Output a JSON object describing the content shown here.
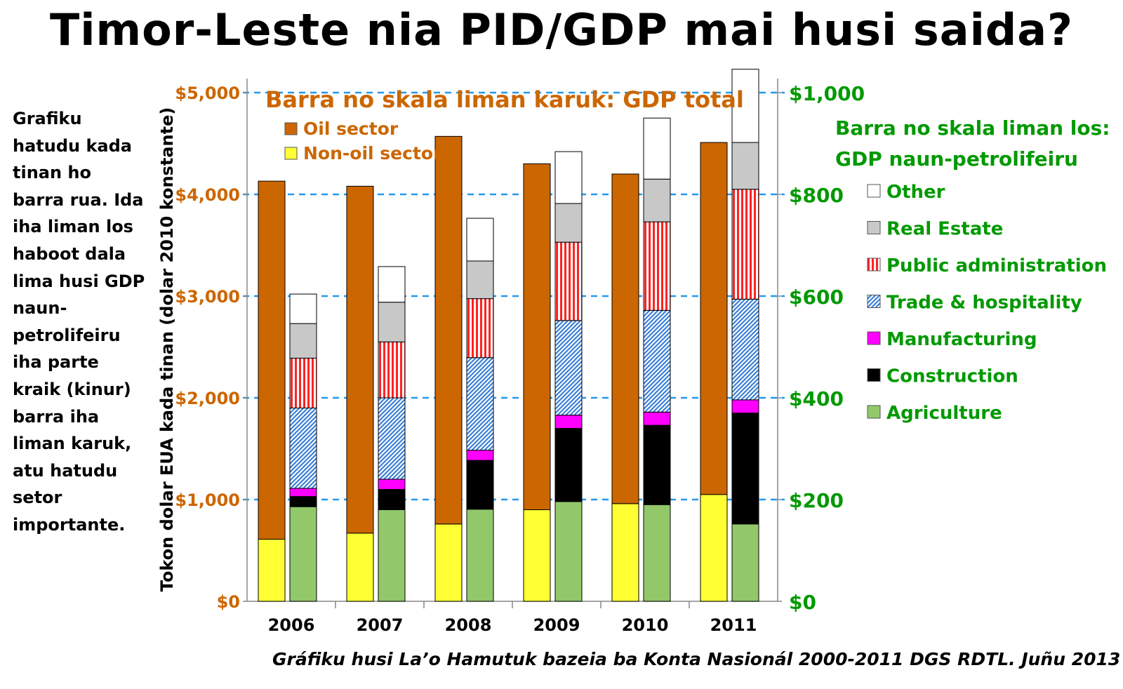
{
  "title": "Timor-Leste nia PID/GDP mai husi saida?",
  "side_text": "Grafiku\nhatudu kada\ntinan ho\nbarra rua. Ida\niha liman los\nhaboot dala\nlima husi GDP\nnaun-\npetrolifeiru\niha parte\nkraik (kinur)\nbarra iha\nliman karuk,\natu hatudu\nsetor\nimportante.",
  "caption": "Gráfiku husi La’o Hamutuk bazeia ba Konta Nasionál 2000-2011 DGS RDTL.  Juñu 2013",
  "colors": {
    "left_axis": "#cc6600",
    "right_axis": "#009900",
    "oil": "#cc6600",
    "non_oil": "#ffff33",
    "agriculture": "#92c86a",
    "construction": "#000000",
    "manufacturing": "#ff00ff",
    "trade": "#3a7fd5",
    "public_admin": "#ff2222",
    "real_estate": "#c8c8c8",
    "other": "#ffffff",
    "gridline": "#2299ee"
  },
  "chart_data": {
    "type": "bar",
    "categories": [
      "2006",
      "2007",
      "2008",
      "2009",
      "2010",
      "2011"
    ],
    "ylabel": "Tokon dolar EUA kada tinan (dolar 2010 konstante)",
    "left_axis": {
      "ylim": [
        0,
        5000
      ],
      "ticks": [
        0,
        1000,
        2000,
        3000,
        4000,
        5000
      ],
      "tick_labels": [
        "$0",
        "$1,000",
        "$2,000",
        "$3,000",
        "$4,000",
        "$5,000"
      ]
    },
    "right_axis": {
      "ylim": [
        0,
        1000
      ],
      "ticks": [
        0,
        200,
        400,
        600,
        800,
        1000
      ],
      "tick_labels": [
        "$0",
        "$200",
        "$400",
        "$600",
        "$800",
        "$1,000"
      ]
    },
    "total_gdp": {
      "heading": "Barra no skala liman karuk: GDP total",
      "axis": "left",
      "stacked": true,
      "series": [
        {
          "name": "Non-oil sector",
          "key": "non_oil",
          "values": [
            610,
            670,
            760,
            900,
            960,
            1050
          ]
        },
        {
          "name": "Oil sector",
          "key": "oil",
          "values": [
            3520,
            3410,
            3810,
            3400,
            3240,
            3460
          ]
        }
      ]
    },
    "non_oil_gdp": {
      "heading_line1": "Barra no skala liman los:",
      "heading_line2": "GDP naun-petrolifeiru",
      "axis": "right",
      "stacked": true,
      "series": [
        {
          "name": "Agriculture",
          "key": "agriculture",
          "values": [
            186,
            180,
            181,
            196,
            190,
            152
          ]
        },
        {
          "name": "Construction",
          "key": "construction",
          "values": [
            20,
            40,
            96,
            144,
            156,
            218
          ]
        },
        {
          "name": "Manufacturing",
          "key": "manufacturing",
          "values": [
            16,
            20,
            20,
            26,
            26,
            26
          ]
        },
        {
          "name": "Trade & hospitality",
          "key": "trade",
          "values": [
            158,
            160,
            182,
            186,
            200,
            198
          ]
        },
        {
          "name": "Public administration",
          "key": "public_admin",
          "values": [
            98,
            110,
            116,
            154,
            174,
            216
          ]
        },
        {
          "name": "Real Estate",
          "key": "real_estate",
          "values": [
            68,
            78,
            74,
            76,
            84,
            92
          ]
        },
        {
          "name": "Other",
          "key": "other",
          "values": [
            58,
            70,
            84,
            102,
            120,
            144
          ]
        }
      ]
    }
  }
}
